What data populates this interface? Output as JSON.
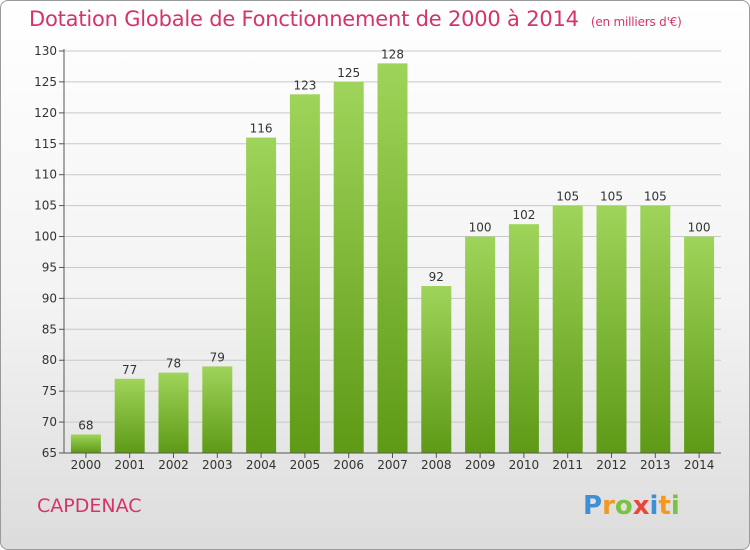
{
  "header": {
    "title": "Dotation Globale de Fonctionnement de 2000 à 2014",
    "subtitle": "(en milliers d'€)"
  },
  "footer": {
    "commune": "CAPDENAC",
    "logo_letters": [
      "P",
      "r",
      "o",
      "x",
      "i",
      "t",
      "i"
    ],
    "logo_colors": [
      "#3f8fd6",
      "#f29a1f",
      "#7cc242",
      "#e8483c",
      "#3f8fd6",
      "#f29a1f",
      "#7cc242"
    ]
  },
  "colors": {
    "bar_top": "#9fd45a",
    "bar_bottom": "#5e9a16",
    "axis_text": "#333333",
    "grid": "#c8c8c8",
    "accent": "#d6336c"
  },
  "chart_data": {
    "type": "bar",
    "title": "Dotation Globale de Fonctionnement de 2000 à 2014",
    "subtitle": "(en milliers d'€)",
    "categories": [
      "2000",
      "2001",
      "2002",
      "2003",
      "2004",
      "2005",
      "2006",
      "2007",
      "2008",
      "2009",
      "2010",
      "2011",
      "2012",
      "2013",
      "2014"
    ],
    "values": [
      68,
      77,
      78,
      79,
      116,
      123,
      125,
      128,
      92,
      100,
      102,
      105,
      105,
      105,
      100
    ],
    "ylim": [
      65,
      130
    ],
    "yticks": [
      65,
      70,
      75,
      80,
      85,
      90,
      95,
      100,
      105,
      110,
      115,
      120,
      125,
      130
    ],
    "grid": true,
    "legend": "none",
    "xlabel": "",
    "ylabel": ""
  }
}
